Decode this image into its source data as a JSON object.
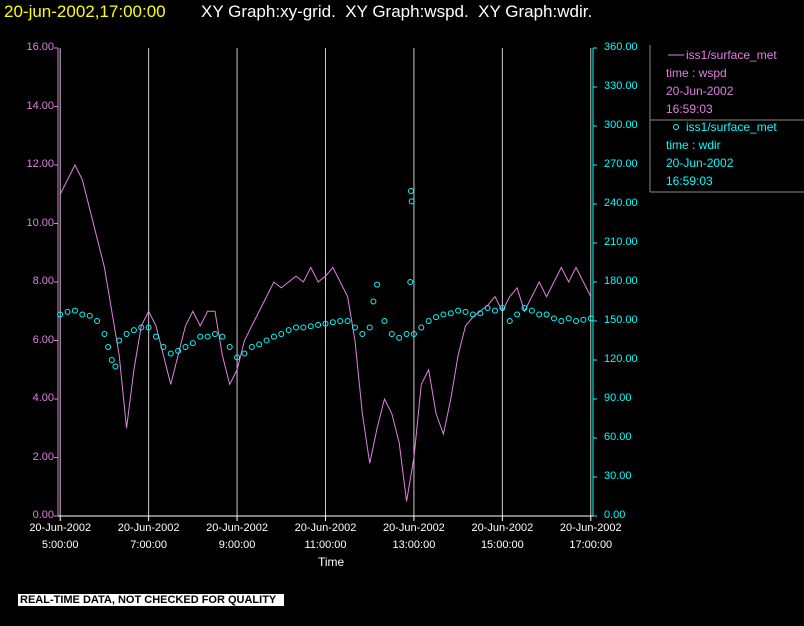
{
  "chart_data": {
    "type": "line-scatter",
    "timestamp": "20-jun-2002,17:00:00",
    "title": "XY Graph:xy-grid.  XY Graph:wspd.  XY Graph:wdir.",
    "x_label": "Time",
    "note": "REAL-TIME DATA, NOT CHECKED FOR QUALITY",
    "xlim": [
      "04:57",
      "17:03"
    ],
    "xticks": [
      {
        "value": "05:00",
        "label": "20-Jun-2002 5:00:00"
      },
      {
        "value": "07:00",
        "label": "20-Jun-2002 7:00:00"
      },
      {
        "value": "09:00",
        "label": "20-Jun-2002 9:00:00"
      },
      {
        "value": "11:00",
        "label": "20-Jun-2002 11:00:00"
      },
      {
        "value": "13:00",
        "label": "20-Jun-2002 13:00:00"
      },
      {
        "value": "15:00",
        "label": "20-Jun-2002 15:00:00"
      },
      {
        "value": "17:00",
        "label": "20-Jun-2002 17:00:00"
      }
    ],
    "grid": true,
    "ylim": [
      0,
      16
    ],
    "yticks": [
      {
        "value": 0,
        "label": "0.00"
      },
      {
        "value": 2,
        "label": "2.00"
      },
      {
        "value": 4,
        "label": "4.00"
      },
      {
        "value": 6,
        "label": "6.00"
      },
      {
        "value": 8,
        "label": "8.00"
      },
      {
        "value": 10,
        "label": "10.00"
      },
      {
        "value": 12,
        "label": "12.00"
      },
      {
        "value": 14,
        "label": "14.00"
      },
      {
        "value": 16,
        "label": "16.00"
      }
    ],
    "y2lim": [
      0,
      360
    ],
    "y2ticks": [
      {
        "value": 0,
        "label": "0.00"
      },
      {
        "value": 30,
        "label": "30.00"
      },
      {
        "value": 60,
        "label": "60.00"
      },
      {
        "value": 90,
        "label": "90.00"
      },
      {
        "value": 120,
        "label": "120.00"
      },
      {
        "value": 150,
        "label": "150.00"
      },
      {
        "value": 180,
        "label": "180.00"
      },
      {
        "value": 210,
        "label": "210.00"
      },
      {
        "value": 240,
        "label": "240.00"
      },
      {
        "value": 270,
        "label": "270.00"
      },
      {
        "value": 300,
        "label": "300.00"
      },
      {
        "value": 330,
        "label": "330.00"
      },
      {
        "value": 360,
        "label": "360.00"
      }
    ],
    "series": [
      {
        "name": "iss1/surface_met",
        "kind": "line",
        "color": "#e080e0",
        "axis": "y",
        "legend_lines": [
          "time : wspd",
          "20-Jun-2002",
          "16:59:03"
        ],
        "x": [
          "05:00",
          "05:10",
          "05:20",
          "05:30",
          "05:40",
          "05:50",
          "06:00",
          "06:10",
          "06:20",
          "06:30",
          "06:40",
          "06:50",
          "07:00",
          "07:10",
          "07:20",
          "07:30",
          "07:40",
          "07:50",
          "08:00",
          "08:10",
          "08:20",
          "08:30",
          "08:40",
          "08:50",
          "09:00",
          "09:10",
          "09:20",
          "09:30",
          "09:40",
          "09:50",
          "10:00",
          "10:10",
          "10:20",
          "10:30",
          "10:40",
          "10:50",
          "11:00",
          "11:10",
          "11:20",
          "11:30",
          "11:40",
          "11:50",
          "12:00",
          "12:10",
          "12:20",
          "12:30",
          "12:40",
          "12:50",
          "13:00",
          "13:10",
          "13:20",
          "13:30",
          "13:40",
          "13:50",
          "14:00",
          "14:10",
          "14:20",
          "14:30",
          "14:40",
          "14:50",
          "15:00",
          "15:10",
          "15:20",
          "15:30",
          "15:40",
          "15:50",
          "16:00",
          "16:10",
          "16:20",
          "16:30",
          "16:40",
          "16:50",
          "17:00"
        ],
        "values": [
          11.0,
          11.5,
          12.0,
          11.5,
          10.5,
          9.5,
          8.5,
          7.0,
          5.5,
          3.0,
          5.0,
          6.5,
          7.0,
          6.5,
          5.5,
          4.5,
          5.5,
          6.5,
          7.0,
          6.5,
          7.0,
          7.0,
          5.5,
          4.5,
          5.0,
          6.0,
          6.5,
          7.0,
          7.5,
          8.0,
          7.8,
          8.0,
          8.2,
          8.0,
          8.5,
          8.0,
          8.2,
          8.5,
          8.0,
          7.5,
          6.0,
          3.5,
          1.8,
          3.0,
          4.0,
          3.5,
          2.5,
          0.5,
          2.0,
          4.5,
          5.0,
          3.5,
          2.8,
          4.0,
          5.5,
          6.5,
          6.8,
          7.0,
          7.2,
          7.5,
          7.0,
          7.5,
          7.8,
          7.0,
          7.5,
          8.0,
          7.5,
          8.0,
          8.5,
          8.0,
          8.5,
          8.0,
          7.5
        ]
      },
      {
        "name": "iss1/surface_met",
        "kind": "scatter",
        "color": "#00ffff",
        "axis": "y2",
        "legend_lines": [
          "time : wdir",
          "20-Jun-2002",
          "16:59:03"
        ],
        "x": [
          "05:00",
          "05:10",
          "05:20",
          "05:30",
          "05:40",
          "05:50",
          "06:00",
          "06:05",
          "06:10",
          "06:15",
          "06:20",
          "06:30",
          "06:40",
          "06:50",
          "07:00",
          "07:10",
          "07:20",
          "07:30",
          "07:40",
          "07:50",
          "08:00",
          "08:10",
          "08:20",
          "08:30",
          "08:40",
          "08:50",
          "09:00",
          "09:10",
          "09:20",
          "09:30",
          "09:40",
          "09:50",
          "10:00",
          "10:10",
          "10:20",
          "10:30",
          "10:40",
          "10:50",
          "11:00",
          "11:10",
          "11:20",
          "11:30",
          "11:40",
          "11:50",
          "12:00",
          "12:05",
          "12:10",
          "12:20",
          "12:30",
          "12:40",
          "12:50",
          "12:55",
          "12:56",
          "12:57",
          "13:00",
          "13:10",
          "13:20",
          "13:30",
          "13:40",
          "13:50",
          "14:00",
          "14:10",
          "14:20",
          "14:30",
          "14:40",
          "14:50",
          "15:00",
          "15:10",
          "15:20",
          "15:30",
          "15:40",
          "15:50",
          "16:00",
          "16:10",
          "16:20",
          "16:30",
          "16:40",
          "16:50",
          "17:00"
        ],
        "values": [
          155,
          157,
          158,
          155,
          154,
          150,
          140,
          130,
          120,
          115,
          135,
          140,
          143,
          145,
          145,
          138,
          130,
          125,
          127,
          130,
          133,
          138,
          138,
          140,
          138,
          130,
          122,
          125,
          130,
          132,
          135,
          138,
          140,
          143,
          145,
          145,
          146,
          147,
          148,
          149,
          150,
          150,
          145,
          140,
          145,
          165,
          178,
          150,
          140,
          137,
          140,
          180,
          250,
          242,
          140,
          145,
          150,
          153,
          155,
          156,
          158,
          157,
          155,
          156,
          160,
          158,
          160,
          150,
          155,
          160,
          158,
          155,
          155,
          152,
          150,
          152,
          150,
          151,
          152
        ]
      }
    ]
  }
}
